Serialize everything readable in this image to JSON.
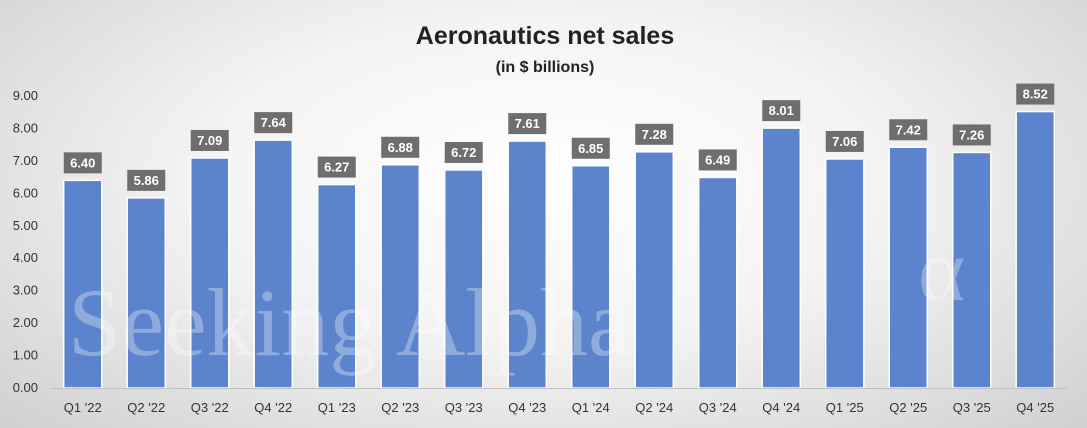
{
  "watermark": {
    "text": "Seeking Alpha"
  },
  "chart_data": {
    "type": "bar",
    "title": "Aeronautics net sales",
    "subtitle": "(in $ billions)",
    "xlabel": "",
    "ylabel": "",
    "ylim": [
      0,
      9
    ],
    "yticks": [
      "0.00",
      "1.00",
      "2.00",
      "3.00",
      "4.00",
      "5.00",
      "6.00",
      "7.00",
      "8.00",
      "9.00"
    ],
    "categories": [
      "Q1 '22",
      "Q2 '22",
      "Q3 '22",
      "Q4 '22",
      "Q1 '23",
      "Q2 '23",
      "Q3 '23",
      "Q4 '23",
      "Q1 '24",
      "Q2 '24",
      "Q3 '24",
      "Q4 '24",
      "Q1 '25",
      "Q2 '25",
      "Q3 '25",
      "Q4 '25"
    ],
    "values": [
      6.4,
      5.86,
      7.09,
      7.64,
      6.27,
      6.88,
      6.72,
      7.61,
      6.85,
      7.28,
      6.49,
      8.01,
      7.06,
      7.42,
      7.26,
      8.52
    ],
    "data_labels": [
      "6.40",
      "5.86",
      "7.09",
      "7.64",
      "6.27",
      "6.88",
      "6.72",
      "7.61",
      "6.85",
      "7.28",
      "6.49",
      "8.01",
      "7.06",
      "7.42",
      "7.26",
      "8.52"
    ],
    "grid": false,
    "legend": "none",
    "colors": {
      "bar": "#5b84cc",
      "bar_edge": "#ffffff",
      "label_box": "#6e6e6e",
      "label_text": "#ffffff"
    }
  }
}
